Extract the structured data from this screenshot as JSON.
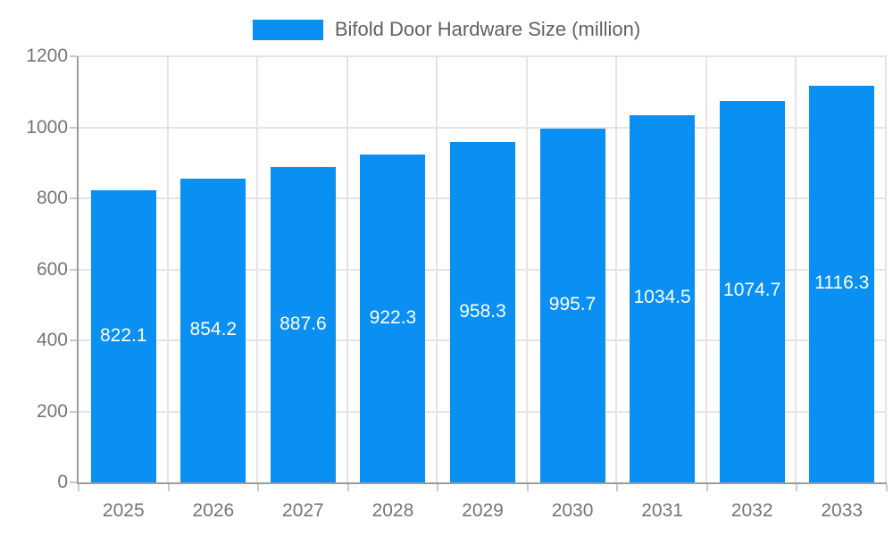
{
  "legend": {
    "label": "Bifold Door Hardware Size (million)"
  },
  "colors": {
    "bar": "#0990f2",
    "axis_line": "#9c9c9c",
    "grid_line": "#e4e4e4",
    "tick_mark": "#c9c9c9",
    "axis_text": "#757575",
    "legend_text": "#616161",
    "data_label_text": "#ffffff",
    "background": "#ffffff"
  },
  "chart_data": {
    "type": "bar",
    "title": "Bifold Door Hardware Size (million)",
    "categories": [
      "2025",
      "2026",
      "2027",
      "2028",
      "2029",
      "2030",
      "2031",
      "2032",
      "2033"
    ],
    "values": [
      822.1,
      854.2,
      887.6,
      922.3,
      958.3,
      995.7,
      1034.5,
      1074.7,
      1116.3
    ],
    "value_labels": [
      "822.1",
      "854.2",
      "887.6",
      "922.3",
      "958.3",
      "995.7",
      "1034.5",
      "1074.7",
      "1116.3"
    ],
    "xlabel": "",
    "ylabel": "",
    "ylim": [
      0,
      1200
    ],
    "yticks": [
      0,
      200,
      400,
      600,
      800,
      1000,
      1200
    ],
    "grid": true,
    "legend_position": "top-center",
    "data_label_position": "inside-center"
  }
}
